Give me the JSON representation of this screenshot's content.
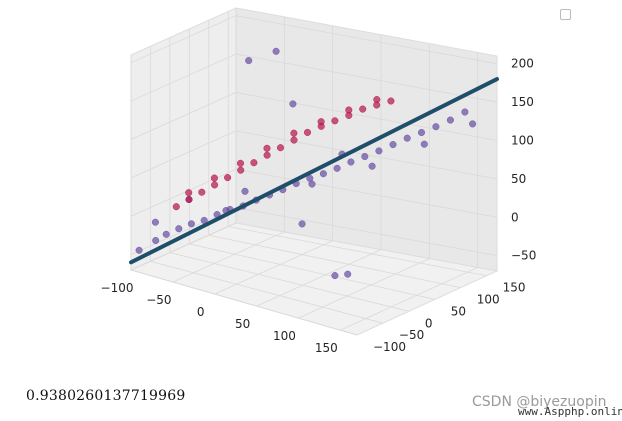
{
  "chart_data": {
    "type": "scatter",
    "projection": "3d",
    "grid": true,
    "legend": "top-right",
    "xlim": [
      -100,
      170
    ],
    "ylim": [
      -100,
      170
    ],
    "zlim": [
      -70,
      210
    ],
    "x_ticks": [
      -100,
      -50,
      0,
      50,
      100,
      150
    ],
    "y_ticks": [
      -100,
      -50,
      0,
      50,
      100,
      150
    ],
    "z_ticks": [
      -50,
      0,
      50,
      100,
      150,
      200
    ],
    "x_tick_labels": [
      "−100",
      "−50",
      "0",
      "50",
      "100",
      "150"
    ],
    "y_tick_labels": [
      "−100",
      "−50",
      "0",
      "50",
      "100",
      "150"
    ],
    "z_tick_labels": [
      "−50",
      "0",
      "50",
      "100",
      "150",
      "200"
    ],
    "colors": {
      "low_points": "#6a51a3",
      "high_points": "#b5174e",
      "fit_line": "#1f4e6b",
      "pane": "#f2f2f2",
      "grid": "#d9d9d9"
    },
    "series": [
      {
        "points": [
          [
            -95,
            -90,
            -45
          ],
          [
            -80,
            -80,
            -30
          ],
          [
            -70,
            -75,
            -20
          ],
          [
            -60,
            -65,
            -12
          ],
          [
            -50,
            -55,
            -5
          ],
          [
            -40,
            -45,
            0
          ],
          [
            -30,
            -35,
            8
          ],
          [
            -20,
            -25,
            15
          ],
          [
            -10,
            -15,
            20
          ],
          [
            0,
            -5,
            28
          ],
          [
            10,
            5,
            35
          ],
          [
            20,
            15,
            42
          ],
          [
            30,
            25,
            50
          ],
          [
            40,
            35,
            57
          ],
          [
            50,
            45,
            63
          ],
          [
            60,
            55,
            70
          ],
          [
            70,
            65,
            78
          ],
          [
            80,
            75,
            85
          ],
          [
            90,
            85,
            92
          ],
          [
            100,
            95,
            100
          ],
          [
            110,
            105,
            108
          ],
          [
            120,
            115,
            115
          ],
          [
            130,
            125,
            122
          ],
          [
            140,
            135,
            130
          ],
          [
            150,
            145,
            140
          ],
          [
            -85,
            -70,
            -10
          ],
          [
            -60,
            -40,
            20
          ],
          [
            -20,
            10,
            30
          ],
          [
            30,
            60,
            40
          ],
          [
            70,
            110,
            60
          ],
          [
            110,
            140,
            90
          ],
          [
            150,
            160,
            120
          ],
          [
            -90,
            120,
            -40
          ],
          [
            140,
            -80,
            150
          ],
          [
            -50,
            150,
            170
          ],
          [
            120,
            -60,
            -20
          ],
          [
            0,
            100,
            -30
          ],
          [
            60,
            -40,
            180
          ],
          [
            -30,
            40,
            190
          ],
          [
            90,
            20,
            -50
          ]
        ]
      },
      {
        "points": [
          [
            -70,
            -50,
            10
          ],
          [
            -60,
            -40,
            20
          ],
          [
            -50,
            -30,
            30
          ],
          [
            -40,
            -20,
            40
          ],
          [
            -30,
            -10,
            50
          ],
          [
            -20,
            0,
            60
          ],
          [
            -10,
            10,
            70
          ],
          [
            0,
            20,
            80
          ],
          [
            10,
            30,
            90
          ],
          [
            20,
            40,
            100
          ],
          [
            30,
            50,
            110
          ],
          [
            40,
            60,
            118
          ],
          [
            50,
            70,
            125
          ],
          [
            60,
            80,
            132
          ],
          [
            70,
            90,
            140
          ],
          [
            80,
            100,
            145
          ],
          [
            90,
            110,
            150
          ],
          [
            -65,
            -30,
            25
          ],
          [
            -45,
            -10,
            45
          ],
          [
            -25,
            10,
            65
          ],
          [
            -5,
            30,
            85
          ],
          [
            15,
            50,
            105
          ],
          [
            35,
            70,
            120
          ],
          [
            55,
            90,
            135
          ],
          [
            75,
            110,
            148
          ]
        ]
      }
    ],
    "fit_line": {
      "x": [
        -100,
        170
      ],
      "y": [
        -100,
        170
      ],
      "z": [
        -60,
        180
      ]
    }
  },
  "output": {
    "score": "0.9380260137719969"
  },
  "watermark": {
    "source": "CSDN @biyezuopin",
    "site": "www.Aspphp.online"
  }
}
